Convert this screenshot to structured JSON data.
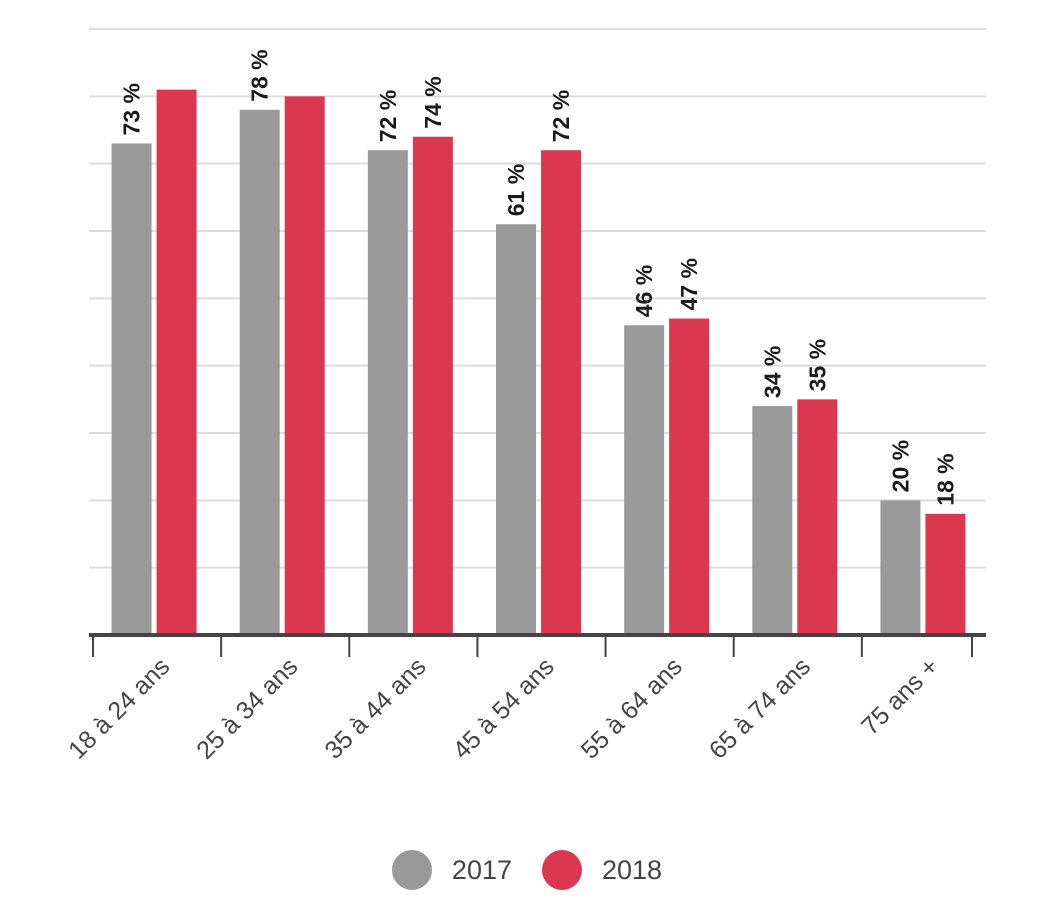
{
  "chart_data": {
    "type": "bar",
    "categories": [
      "18 à 24 ans",
      "25 à 34 ans",
      "35 à 44 ans",
      "45 à 54 ans",
      "55 à 64 ans",
      "65 à 74 ans",
      "75 ans +"
    ],
    "series": [
      {
        "name": "2017",
        "color": "#999999",
        "values": [
          73,
          78,
          72,
          61,
          46,
          34,
          20
        ],
        "labels": [
          "73 %",
          "78 %",
          "72 %",
          "61 %",
          "46 %",
          "34 %",
          "20 %"
        ]
      },
      {
        "name": "2018",
        "color": "#db3751",
        "values": [
          81,
          80,
          74,
          72,
          47,
          35,
          18
        ],
        "labels": [
          "",
          "",
          "74 %",
          "72 %",
          "47 %",
          "35 %",
          "18 %"
        ]
      }
    ],
    "ylim": [
      0,
      90
    ],
    "grid": true,
    "legend_position": "bottom"
  }
}
